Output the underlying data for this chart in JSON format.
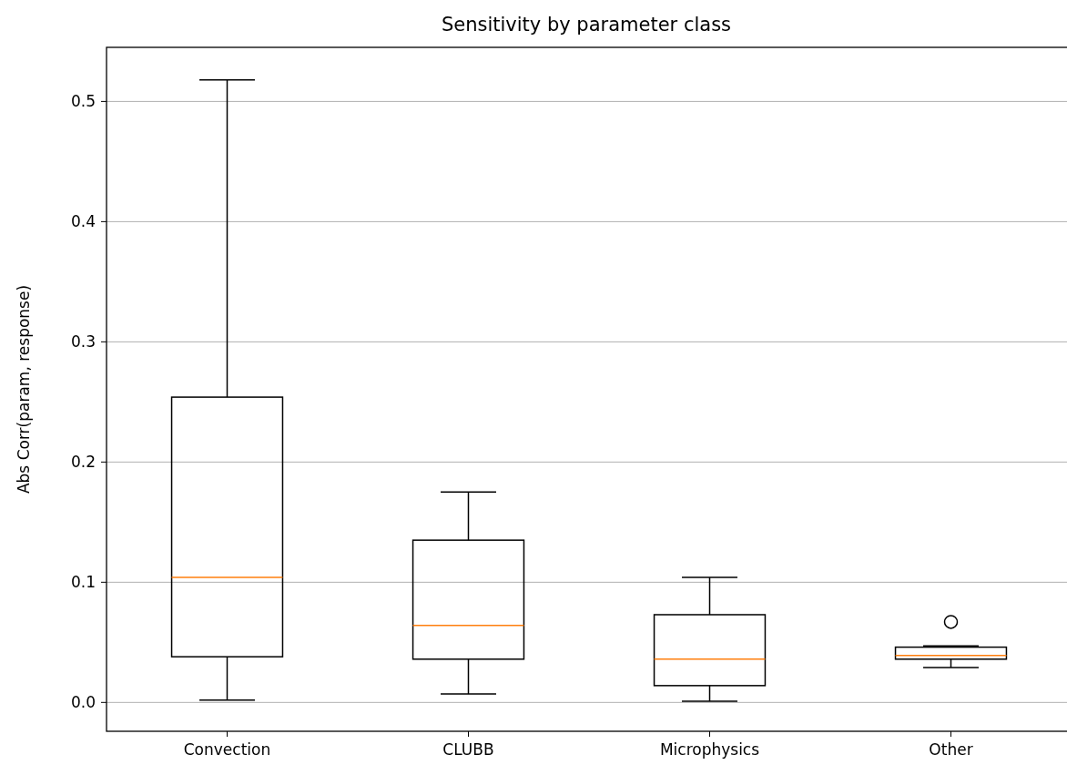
{
  "chart_data": {
    "type": "box",
    "title": "Sensitivity by parameter class",
    "ylabel": "Abs Corr(param, response)",
    "categories": [
      "Convection",
      "CLUBB",
      "Microphysics",
      "Other"
    ],
    "boxes": [
      {
        "low": 0.002,
        "q1": 0.038,
        "median": 0.104,
        "q3": 0.254,
        "high": 0.518
      },
      {
        "low": 0.007,
        "q1": 0.036,
        "median": 0.064,
        "q3": 0.135,
        "high": 0.175
      },
      {
        "low": 0.001,
        "q1": 0.014,
        "median": 0.036,
        "q3": 0.073,
        "high": 0.104
      },
      {
        "low": 0.029,
        "q1": 0.036,
        "median": 0.039,
        "q3": 0.046,
        "high": 0.047,
        "outliers": [
          0.067
        ]
      }
    ],
    "color": "#000000",
    "ylim": [
      -0.024,
      0.545
    ],
    "yticks": [
      {
        "value": 0,
        "label": "0.0"
      },
      0.1,
      0.2,
      0.3,
      0.4,
      0.5
    ],
    "grid": "y"
  }
}
